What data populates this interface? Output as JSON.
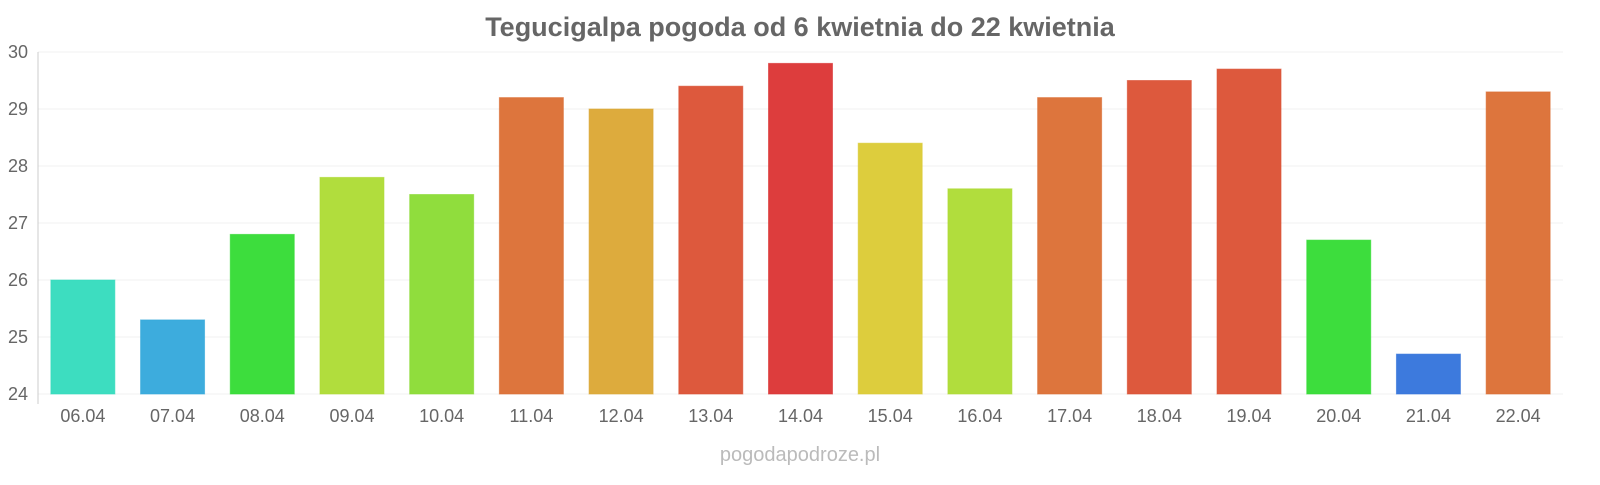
{
  "chart_data": {
    "type": "bar",
    "title": "Tegucigalpa pogoda od 6 kwietnia do 22 kwietnia",
    "xlabel": "",
    "ylabel": "",
    "ylim": [
      24,
      30
    ],
    "yticks": [
      24,
      25,
      26,
      27,
      28,
      29,
      30
    ],
    "grid": true,
    "categories": [
      "06.04",
      "07.04",
      "08.04",
      "09.04",
      "10.04",
      "11.04",
      "12.04",
      "13.04",
      "14.04",
      "15.04",
      "16.04",
      "17.04",
      "18.04",
      "19.04",
      "20.04",
      "21.04",
      "22.04"
    ],
    "values": [
      26.0,
      25.3,
      26.8,
      27.8,
      27.5,
      29.2,
      29.0,
      29.4,
      29.8,
      28.4,
      27.6,
      29.2,
      29.5,
      29.7,
      26.7,
      24.7,
      29.3
    ],
    "colors": [
      "#33dbbd",
      "#33a8db",
      "#33db33",
      "#addb33",
      "#8adb33",
      "#db6e33",
      "#dba633",
      "#db5033",
      "#db3333",
      "#dbca33",
      "#addb33",
      "#db6e33",
      "#db5033",
      "#db5033",
      "#33db33",
      "#3373db",
      "#db6e33"
    ]
  },
  "footer": {
    "source": "pogodapodroze.pl"
  }
}
